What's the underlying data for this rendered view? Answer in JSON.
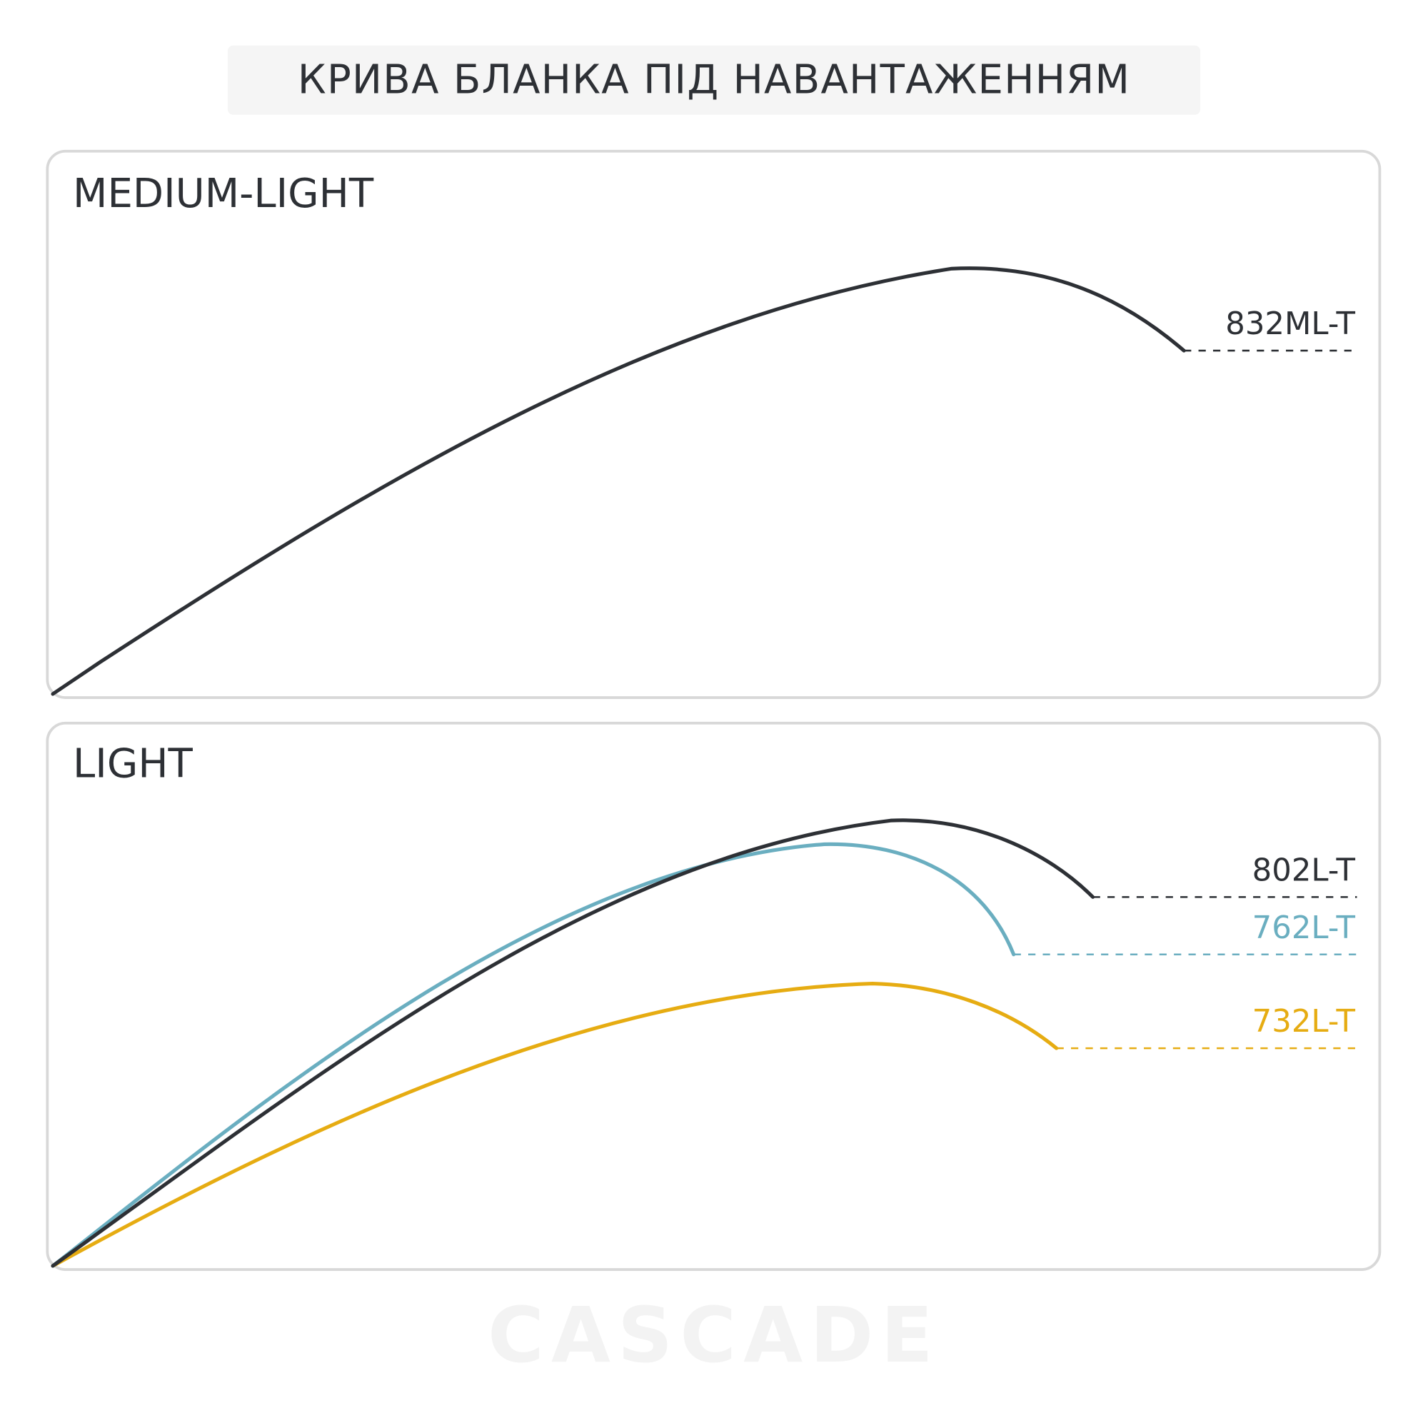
{
  "header": {
    "title": "КРИВА БЛАНКА ПІД НАВАНТАЖЕННЯМ"
  },
  "panels": [
    {
      "title": "MEDIUM-LIGHT",
      "curves": [
        {
          "label": "832ML-T"
        }
      ]
    },
    {
      "title": "LIGHT",
      "curves": [
        {
          "label": "802L-T"
        },
        {
          "label": "762L-T"
        },
        {
          "label": "732L-T"
        }
      ]
    }
  ],
  "watermark": "CASCADE"
}
